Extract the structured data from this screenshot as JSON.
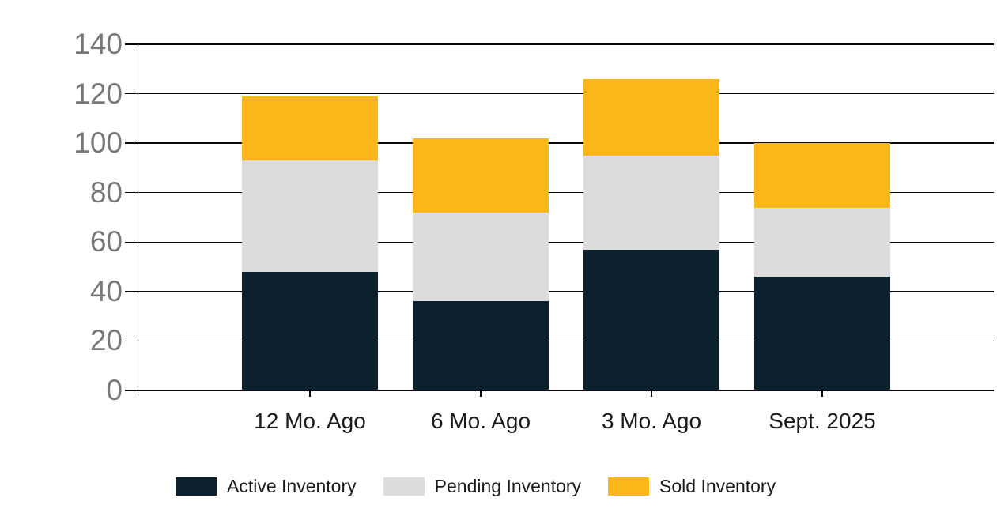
{
  "chart_data": {
    "type": "bar",
    "stacked": true,
    "title": "",
    "xlabel": "",
    "ylabel": "",
    "categories": [
      "12 Mo. Ago",
      "6 Mo. Ago",
      "3 Mo. Ago",
      "Sept. 2025"
    ],
    "series": [
      {
        "name": "Active Inventory",
        "color": "#0d202e",
        "values": [
          48,
          36,
          57,
          46
        ]
      },
      {
        "name": "Pending Inventory",
        "color": "#dcdcdc",
        "values": [
          45,
          36,
          38,
          28
        ]
      },
      {
        "name": "Sold Inventory",
        "color": "#fbb617",
        "values": [
          26,
          30,
          31,
          26
        ]
      }
    ],
    "stack_totals": [
      119,
      102,
      126,
      100
    ],
    "ylim": [
      0,
      140
    ],
    "yticks": [
      0,
      20,
      40,
      60,
      80,
      100,
      120,
      140
    ],
    "grid": true,
    "gridline_color": "#0a0a0a",
    "y_label_color": "#787878",
    "x_label_color": "#1b1b1b",
    "legend_position": "bottom"
  }
}
